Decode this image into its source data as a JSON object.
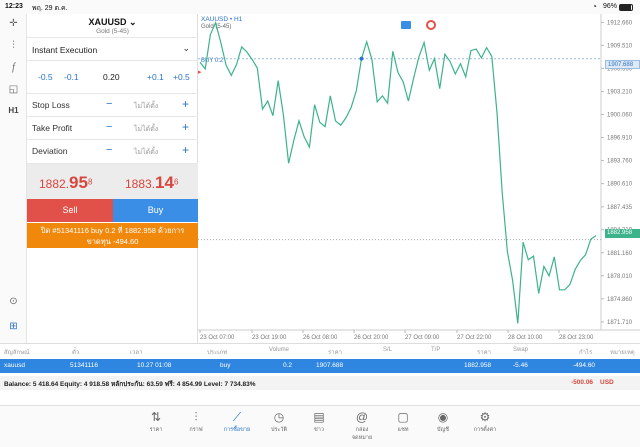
{
  "status": {
    "time": "12:23",
    "date": "พฤ. 29 ต.ค.",
    "battery": "96%"
  },
  "panel": {
    "symbol": "XAUUSD",
    "symbol_desc": "Gold (5-45)",
    "exec_mode": "Instant Execution",
    "volume": {
      "m05": "-0.5",
      "m01": "-0.1",
      "value": "0.20",
      "p01": "+0.1",
      "p05": "+0.5"
    },
    "fields": [
      {
        "label": "Stop Loss",
        "value": "ไม่ได้ตั้ง"
      },
      {
        "label": "Take Profit",
        "value": "ไม่ได้ตั้ง"
      },
      {
        "label": "Deviation",
        "value": "ไม่ได้ตั้ง"
      }
    ],
    "bid": {
      "main": "1882.",
      "big": "95",
      "sup": "8"
    },
    "ask": {
      "main": "1883.",
      "big": "14",
      "sup": "6"
    },
    "sell": "Sell",
    "buy": "Buy",
    "notice": "ปิด #51341116 buy 0.2 ที่ 1882.958 ด้วยการขาดทุน -494.60"
  },
  "chart": {
    "title": "XAUUSD • H1",
    "subtitle": "Gold (5-45)",
    "order_line": "BUY 0.2",
    "current_price": "1882.958",
    "order_price_label": "1907.688"
  },
  "chart_data": {
    "type": "line",
    "series": [
      {
        "values": [
          1907.2,
          1906.3,
          1911.0,
          1912.6,
          1909.9,
          1906.8,
          1905.4,
          1906.9,
          1909.3,
          1908.6,
          1907.6,
          1906.4,
          1900.8,
          1901.9,
          1899.9,
          1904.7,
          1900.0,
          1893.4,
          1896.5,
          1899.2,
          1897.0,
          1895.6,
          1901.4,
          1899.0,
          1898.4,
          1902.6,
          1899.2,
          1898.6,
          1899.6,
          1901.0,
          1903.3,
          1907.7,
          1910.0,
          1907.6,
          1901.8,
          1902.6,
          1901.6,
          1908.7,
          1905.8,
          1904.5,
          1901.9,
          1905.0,
          1907.9,
          1909.9,
          1906.1,
          1907.7,
          1903.6,
          1908.3,
          1907.3,
          1905.6,
          1907.0,
          1905.2,
          1908.8,
          1909.0,
          1907.8,
          1909.2,
          1908.0,
          1900.3,
          1889.4,
          1881.3,
          1877.4,
          1871.5,
          1882.6,
          1880.2,
          1880.7,
          1875.6,
          1879.3,
          1878.0,
          1880.6,
          1876.1,
          1876.1,
          1876.8,
          1878.9,
          1880.1,
          1880.9,
          1883.0,
          1883.5
        ]
      }
    ],
    "y_ticks": [
      "1912.660",
      "1909.510",
      "1906.360",
      "1903.210",
      "1900.060",
      "1896.910",
      "1893.760",
      "1890.610",
      "1887.435",
      "1884.310",
      "1881.160",
      "1878.010",
      "1874.860",
      "1871.710"
    ],
    "x_ticks": [
      "23 Oct 07:00",
      "23 Oct 19:00",
      "26 Oct 08:00",
      "26 Oct 20:00",
      "27 Oct 09:00",
      "27 Oct 22:00",
      "28 Oct 10:00",
      "28 Oct 23:00"
    ],
    "ylim": [
      1870.6,
      1913.8
    ],
    "order_price": 1907.688,
    "current_price": 1882.958
  },
  "table": {
    "headers": [
      "สัญลักษณ์",
      "ตั๋ว",
      "เวลา",
      "ประเภท",
      "Volume",
      "ราคา",
      "S/L",
      "T/P",
      "ราคา",
      "Swap",
      "กำไร",
      "หมายเหตุ"
    ],
    "row": [
      "xauusd",
      "51341116",
      "10.27 01:08",
      "buy",
      "0.2",
      "1907.688",
      "",
      "",
      "1882.958",
      "-5.46",
      "-494.60",
      ""
    ],
    "balance": "Balance: 5 418.64  Equity: 4 918.58  หลักประกัน: 63.59  ฟรี: 4 854.99  Level: 7 734.83%",
    "balance_pl": "-500.06",
    "currency": "USD"
  },
  "nav": [
    {
      "label": "ราคา",
      "icon": "quotes-icon"
    },
    {
      "label": "กราฟ",
      "icon": "chart-icon"
    },
    {
      "label": "การซื้อขาย",
      "icon": "trade-icon"
    },
    {
      "label": "ประวัติ",
      "icon": "history-icon"
    },
    {
      "label": "ข่าว",
      "icon": "news-icon"
    },
    {
      "label": "กล่องจดหมาย",
      "icon": "mailbox-icon"
    },
    {
      "label": "แชท",
      "icon": "chat-icon"
    },
    {
      "label": "บัญชี",
      "icon": "account-icon"
    },
    {
      "label": "การตั้งค่า",
      "icon": "settings-icon"
    }
  ],
  "colors": {
    "accent": "#2a74c9",
    "sell": "#e15149",
    "buy": "#3a8ee6",
    "notice": "#f0880c",
    "line": "#3cb38a",
    "loss": "#d9463e"
  }
}
